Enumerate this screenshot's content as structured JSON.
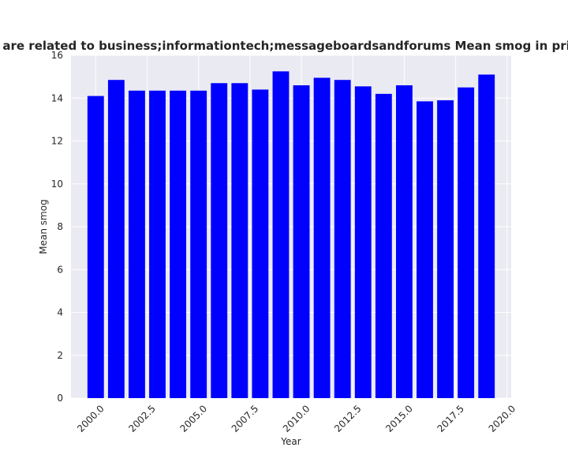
{
  "chart_data": {
    "type": "bar",
    "title": "Categories are related to business;informationtech;messageboardsandforums Mean smog in privacy policies",
    "xlabel": "Year",
    "ylabel": "Mean smog",
    "x": [
      2000,
      2001,
      2002,
      2003,
      2004,
      2005,
      2006,
      2007,
      2008,
      2009,
      2010,
      2011,
      2012,
      2013,
      2014,
      2015,
      2016,
      2017,
      2018,
      2019
    ],
    "values": [
      14.1,
      14.85,
      14.35,
      14.35,
      14.35,
      14.35,
      14.7,
      14.7,
      14.4,
      15.25,
      14.6,
      14.95,
      14.85,
      14.55,
      14.2,
      14.6,
      13.85,
      13.9,
      14.5,
      15.1
    ],
    "xlim": [
      1998.8,
      2020.2
    ],
    "ylim": [
      0,
      16
    ],
    "xticks": [
      2000.0,
      2002.5,
      2005.0,
      2007.5,
      2010.0,
      2012.5,
      2015.0,
      2017.5,
      2020.0
    ],
    "xtick_labels": [
      "2000.0",
      "2002.5",
      "2005.0",
      "2007.5",
      "2010.0",
      "2012.5",
      "2015.0",
      "2017.5",
      "2020.0"
    ],
    "yticks": [
      0,
      2,
      4,
      6,
      8,
      10,
      12,
      14,
      16
    ],
    "ytick_labels": [
      "0",
      "2",
      "4",
      "6",
      "8",
      "10",
      "12",
      "14",
      "16"
    ],
    "bar_color": "#0000ff",
    "background_color": "#eaeaf2",
    "grid": true
  }
}
